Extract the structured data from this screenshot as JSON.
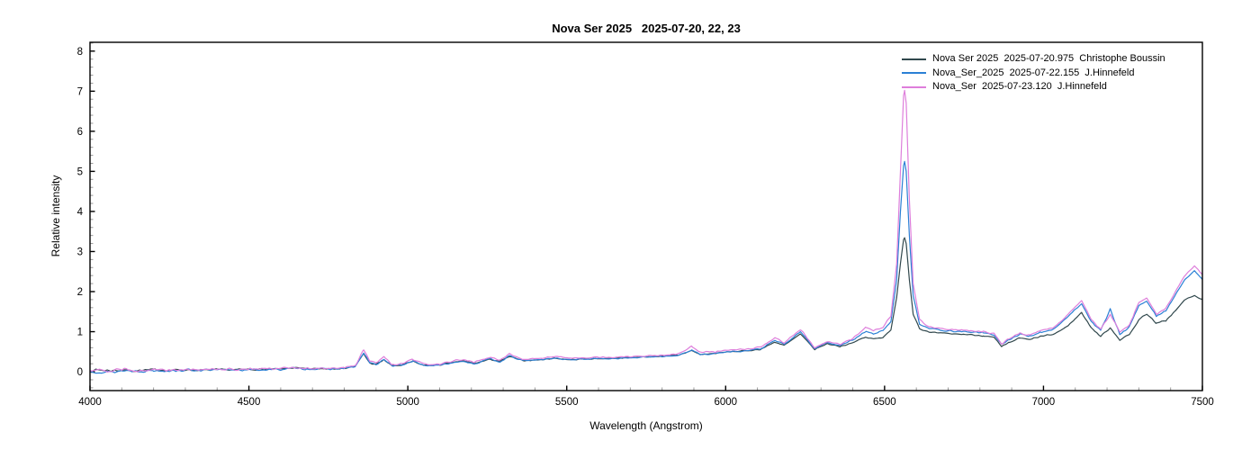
{
  "title": "Nova Ser 2025   2025-07-20, 22, 23",
  "chart_data": {
    "type": "line",
    "title": "Nova Ser 2025   2025-07-20, 22, 23",
    "xlabel": "Wavelength (Angstrom)",
    "ylabel": "Relative intensity",
    "xlim": [
      4000,
      7500
    ],
    "ylim": [
      -0.47,
      8.22
    ],
    "x_major_ticks": [
      4000,
      4500,
      5000,
      5500,
      6000,
      6500,
      7000,
      7500
    ],
    "x_minor_step": 100,
    "y_major_ticks": [
      0,
      1,
      2,
      3,
      4,
      5,
      6,
      7,
      8
    ],
    "y_minor_step": 0.2,
    "grid": false,
    "frame": true,
    "legend_position": "top-right-inside",
    "axis_color": "#000000",
    "minor_tick_color": "#999999",
    "x": [
      4000,
      4030,
      4060,
      4100,
      4150,
      4200,
      4250,
      4300,
      4350,
      4400,
      4450,
      4500,
      4550,
      4600,
      4640,
      4680,
      4750,
      4800,
      4835,
      4861,
      4880,
      4900,
      4925,
      4950,
      4980,
      5015,
      5050,
      5100,
      5170,
      5210,
      5260,
      5290,
      5320,
      5360,
      5420,
      5460,
      5510,
      5560,
      5620,
      5680,
      5740,
      5800,
      5850,
      5893,
      5920,
      5970,
      6010,
      6060,
      6110,
      6155,
      6185,
      6235,
      6280,
      6320,
      6360,
      6400,
      6440,
      6465,
      6495,
      6520,
      6538,
      6550,
      6560,
      6563,
      6568,
      6578,
      6590,
      6610,
      6640,
      6700,
      6760,
      6810,
      6845,
      6868,
      6890,
      6925,
      6955,
      6990,
      7030,
      7065,
      7095,
      7120,
      7150,
      7180,
      7210,
      7240,
      7270,
      7300,
      7325,
      7355,
      7385,
      7415,
      7445,
      7475,
      7500
    ],
    "series": [
      {
        "name": "Nova Ser 2025  2025-07-20.975  Christophe Boussin",
        "color": "#31484d",
        "noise_seed": 7,
        "noise_scale": 0.9,
        "y": [
          0.02,
          0.05,
          0.03,
          0.04,
          0.03,
          0.05,
          0.04,
          0.05,
          0.04,
          0.05,
          0.05,
          0.06,
          0.06,
          0.07,
          0.1,
          0.07,
          0.08,
          0.09,
          0.14,
          0.45,
          0.22,
          0.18,
          0.3,
          0.15,
          0.16,
          0.26,
          0.16,
          0.17,
          0.27,
          0.21,
          0.31,
          0.26,
          0.38,
          0.28,
          0.3,
          0.34,
          0.3,
          0.32,
          0.33,
          0.35,
          0.37,
          0.39,
          0.41,
          0.53,
          0.43,
          0.46,
          0.5,
          0.52,
          0.56,
          0.74,
          0.66,
          0.94,
          0.56,
          0.7,
          0.63,
          0.73,
          0.86,
          0.82,
          0.86,
          1.05,
          1.85,
          2.7,
          3.3,
          3.35,
          3.2,
          2.3,
          1.45,
          1.08,
          0.98,
          0.95,
          0.93,
          0.9,
          0.85,
          0.62,
          0.72,
          0.84,
          0.8,
          0.88,
          0.93,
          1.08,
          1.28,
          1.48,
          1.1,
          0.88,
          1.1,
          0.8,
          0.92,
          1.3,
          1.45,
          1.2,
          1.28,
          1.52,
          1.8,
          1.9,
          1.8
        ]
      },
      {
        "name": "Nova_Ser_2025  2025-07-22.155  J.Hinnefeld",
        "color": "#2b80d5",
        "noise_seed": 13,
        "noise_scale": 1.1,
        "y": [
          0.0,
          0.02,
          -0.02,
          0.03,
          0.02,
          0.03,
          0.03,
          0.04,
          0.04,
          0.04,
          0.05,
          0.05,
          0.05,
          0.06,
          0.09,
          0.07,
          0.07,
          0.08,
          0.13,
          0.47,
          0.22,
          0.18,
          0.31,
          0.15,
          0.16,
          0.27,
          0.16,
          0.16,
          0.27,
          0.2,
          0.32,
          0.25,
          0.39,
          0.28,
          0.3,
          0.34,
          0.3,
          0.32,
          0.33,
          0.34,
          0.36,
          0.38,
          0.41,
          0.54,
          0.43,
          0.46,
          0.5,
          0.52,
          0.57,
          0.78,
          0.68,
          1.0,
          0.58,
          0.73,
          0.66,
          0.79,
          1.0,
          0.95,
          1.02,
          1.25,
          2.3,
          4.0,
          5.15,
          5.25,
          5.0,
          3.4,
          1.9,
          1.2,
          1.08,
          1.02,
          1.0,
          0.97,
          0.92,
          0.68,
          0.79,
          0.93,
          0.89,
          0.98,
          1.06,
          1.28,
          1.52,
          1.7,
          1.27,
          1.02,
          1.58,
          0.92,
          1.12,
          1.65,
          1.76,
          1.38,
          1.52,
          1.92,
          2.3,
          2.52,
          2.3
        ]
      },
      {
        "name": "Nova_Ser  2025-07-23.120  J.Hinnefeld",
        "color": "#de7edb",
        "noise_seed": 29,
        "noise_scale": 1.2,
        "y": [
          0.05,
          0.08,
          0.02,
          0.05,
          0.04,
          0.05,
          0.05,
          0.06,
          0.05,
          0.06,
          0.06,
          0.07,
          0.07,
          0.08,
          0.11,
          0.08,
          0.09,
          0.1,
          0.16,
          0.55,
          0.26,
          0.22,
          0.37,
          0.18,
          0.19,
          0.31,
          0.19,
          0.19,
          0.31,
          0.24,
          0.36,
          0.29,
          0.45,
          0.32,
          0.33,
          0.39,
          0.33,
          0.35,
          0.36,
          0.37,
          0.39,
          0.42,
          0.45,
          0.63,
          0.48,
          0.5,
          0.54,
          0.56,
          0.61,
          0.84,
          0.72,
          1.06,
          0.61,
          0.76,
          0.69,
          0.83,
          1.1,
          1.02,
          1.12,
          1.38,
          2.7,
          5.0,
          6.9,
          7.02,
          6.7,
          4.3,
          2.2,
          1.3,
          1.12,
          1.06,
          1.03,
          1.0,
          0.95,
          0.7,
          0.82,
          0.96,
          0.92,
          1.02,
          1.1,
          1.33,
          1.58,
          1.78,
          1.32,
          1.06,
          1.45,
          0.97,
          1.17,
          1.73,
          1.84,
          1.44,
          1.58,
          2.0,
          2.4,
          2.64,
          2.42
        ]
      }
    ],
    "noise_amplitude_profile": [
      [
        4000,
        0.05
      ],
      [
        4250,
        0.032
      ],
      [
        4800,
        0.022
      ],
      [
        5600,
        0.016
      ],
      [
        6300,
        0.018
      ],
      [
        6800,
        0.02
      ],
      [
        7500,
        0.028
      ]
    ]
  }
}
